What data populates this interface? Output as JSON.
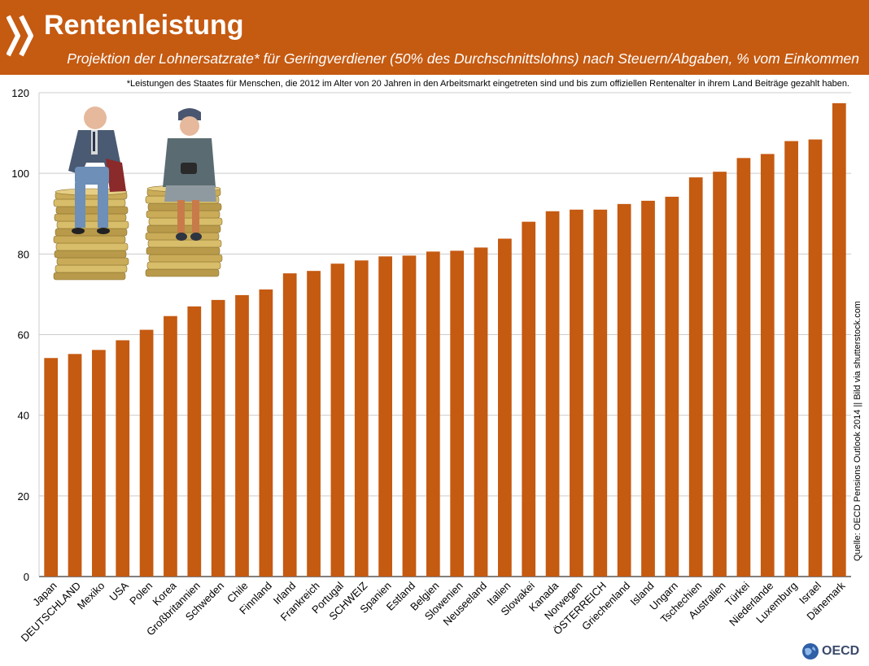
{
  "header": {
    "title": "Rentenleistung",
    "subtitle": "Projektion der Lohnersatzrate* für Geringverdiener (50% des Durchschnittslohns) nach Steuern/Abgaben, % vom Einkommen"
  },
  "footnote": "*Leistungen des Staates für Menschen, die 2012 im Alter von 20 Jahren in den Arbeitsmarkt eingetreten sind und bis zum offiziellen Rentenalter in ihrem Land Beiträge gezahlt haben.",
  "source": "Quelle: OECD Pensions Outlook 2014 || Bild via shutterstock.com",
  "logo": "OECD",
  "colors": {
    "accent": "#c55a11",
    "bar": "#c55a11",
    "grid": "#cccccc"
  },
  "chart_data": {
    "type": "bar",
    "categories": [
      "Japan",
      "DEUTSCHLAND",
      "Mexiko",
      "USA",
      "Polen",
      "Korea",
      "Großbritannien",
      "Schweden",
      "Chile",
      "Finnland",
      "Irland",
      "Frankreich",
      "Portugal",
      "SCHWEIZ",
      "Spanien",
      "Estland",
      "Belgien",
      "Slowenien",
      "Neuseeland",
      "Italien",
      "Slowakei",
      "Kanada",
      "Norwegen",
      "ÖSTERREICH",
      "Griechenland",
      "Island",
      "Ungarn",
      "Tschechien",
      "Australien",
      "Türkei",
      "Niederlande",
      "Luxemburg",
      "Israel",
      "Dänemark"
    ],
    "values": [
      54.2,
      55.2,
      56.2,
      58.6,
      61.2,
      64.6,
      67.0,
      68.6,
      69.8,
      71.2,
      75.2,
      75.8,
      77.6,
      78.4,
      79.4,
      79.6,
      80.6,
      80.8,
      81.6,
      83.8,
      88.0,
      90.6,
      91.0,
      91.0,
      92.4,
      93.2,
      94.2,
      99.0,
      100.4,
      103.8,
      104.8,
      108.0,
      108.4,
      117.4
    ],
    "ylim": [
      0,
      120
    ],
    "yticks": [
      0,
      20,
      40,
      60,
      80,
      100,
      120
    ],
    "grid": true
  }
}
